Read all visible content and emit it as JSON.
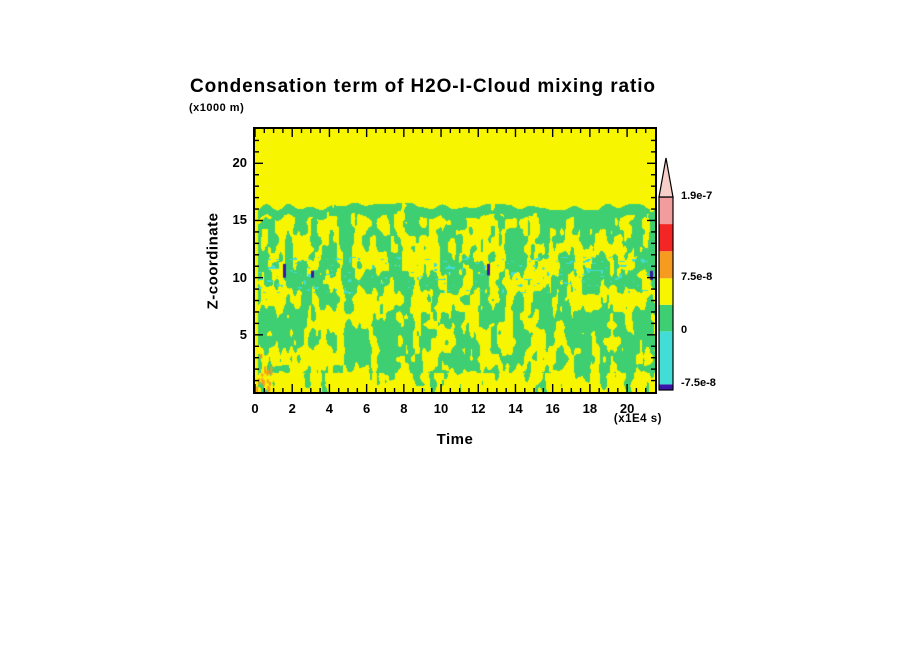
{
  "page": {
    "background": "#ffffff"
  },
  "chart_data": {
    "type": "heatmap",
    "title": "Condensation term of H2O-I-Cloud mixing ratio",
    "xlabel": "Time",
    "x_axis_units": "(x1E4 s)",
    "ylabel": "Z-coordinate",
    "y_axis_units": "(x1000 m)",
    "x_range": [
      0,
      21.5
    ],
    "y_range": [
      0,
      23
    ],
    "x_major_ticks": [
      0,
      2,
      4,
      6,
      8,
      10,
      12,
      14,
      16,
      18,
      20
    ],
    "x_minor_step": 0.5,
    "y_major_ticks": [
      5,
      10,
      15,
      20
    ],
    "y_minor_step": 1,
    "grid": false,
    "legend_position": "right-colorbar",
    "colors": {
      "yellow": "#f8f500",
      "green": "#3fcf73",
      "cyan": "#41ddd6",
      "purple": "#3a16a8",
      "orange": "#f59b1f",
      "red": "#f42525",
      "pink": "#f29d9d",
      "arrow_pink": "#f7cfc9",
      "axis": "#000000"
    },
    "field": {
      "description": "Turbulent convective cloud layer: mottled green (0 to 3.8e-8) and yellow (3.8e-8 to 7.5e-8) condensation structures below cloud top ~16.2 km for all times; solid yellow above cloud top; scattered cyan negative patches (-7.5e-8 to 0) concentrated near z=10 km; a few dark purple minima (< -7.5e-8); small orange positive streaks near t=0, z=0-3.",
      "cloud_top_z": 16.2,
      "cyan_band_z": [
        8.7,
        11.8
      ],
      "navy_marks": [
        {
          "t": 1.55,
          "z": 10.6,
          "h": 1.2
        },
        {
          "t": 3.05,
          "z": 10.3,
          "h": 0.6
        },
        {
          "t": 12.55,
          "z": 10.7,
          "h": 1.0
        },
        {
          "t": 21.3,
          "z": 10.2,
          "h": 0.8
        }
      ],
      "orange_patch_t": [
        0.05,
        0.85
      ],
      "orange_patch_z": [
        0.3,
        3.4
      ],
      "orange_flecks": 14
    },
    "colorbar": {
      "bar_top_value": 1.9e-07,
      "bar_bottom_value": -8.3e-08,
      "tick_labels": [
        "1.9e-7",
        "7.5e-8",
        "0",
        "-7.5e-8"
      ],
      "tick_values": [
        1.9e-07,
        7.5e-08,
        0.0,
        -7.5e-08
      ],
      "overflow_arrow": true,
      "segments": [
        {
          "color_name": "purple",
          "color": "#3a16a8",
          "from": -8.3e-08,
          "to": -7.5e-08
        },
        {
          "color_name": "cyan",
          "color": "#41ddd6",
          "from": -7.5e-08,
          "to": 0.0
        },
        {
          "color_name": "green",
          "color": "#3fcf73",
          "from": 0.0,
          "to": 3.75e-08
        },
        {
          "color_name": "yellow",
          "color": "#f8f500",
          "from": 3.75e-08,
          "to": 7.5e-08
        },
        {
          "color_name": "orange",
          "color": "#f59b1f",
          "from": 7.5e-08,
          "to": 1.133e-07
        },
        {
          "color_name": "red",
          "color": "#f42525",
          "from": 1.133e-07,
          "to": 1.517e-07
        },
        {
          "color_name": "pink",
          "color": "#f29d9d",
          "from": 1.517e-07,
          "to": 1.9e-07
        }
      ]
    }
  }
}
